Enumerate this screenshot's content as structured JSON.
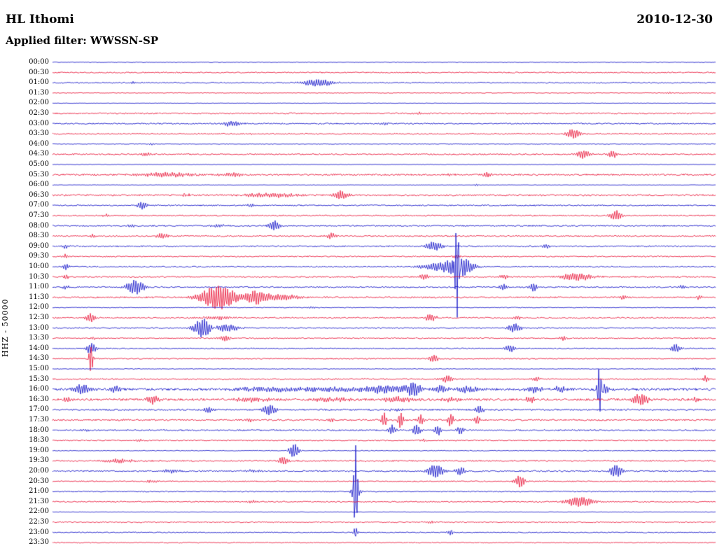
{
  "header": {
    "station": "HL Ithomi",
    "date": "2010-12-30",
    "filter_label": "Applied filter: WWSSN-SP"
  },
  "axis": {
    "y_label": "HHZ - 50000"
  },
  "colors": {
    "blue": "#1212c8",
    "red": "#e81438",
    "text": "#000000",
    "background": "#ffffff"
  },
  "chart_data": {
    "type": "line",
    "subtype": "helicorder-seismogram",
    "title": "HL Ithomi 2010-12-30 HHZ (WWSSN-SP filter)",
    "minutes_per_row": 30,
    "rows_count": 48,
    "event_encoding": "[position_fraction_of_30min_row, amplitude_px, half_width_px]",
    "rows": [
      {
        "time": "00:00",
        "color": "blue",
        "noise": 0.35,
        "events": []
      },
      {
        "time": "00:30",
        "color": "red",
        "noise": 0.8,
        "events": []
      },
      {
        "time": "01:00",
        "color": "blue",
        "noise": 0.8,
        "events": [
          [
            0.4,
            5,
            16
          ],
          [
            0.12,
            1.5,
            4
          ]
        ]
      },
      {
        "time": "01:30",
        "color": "red",
        "noise": 0.5,
        "events": [
          [
            0.93,
            1.5,
            3
          ]
        ]
      },
      {
        "time": "02:00",
        "color": "blue",
        "noise": 0.3,
        "events": []
      },
      {
        "time": "02:30",
        "color": "red",
        "noise": 0.95,
        "events": [
          [
            0.55,
            1.5,
            6
          ]
        ]
      },
      {
        "time": "03:00",
        "color": "blue",
        "noise": 0.85,
        "events": [
          [
            0.27,
            4,
            9
          ],
          [
            0.5,
            2,
            4
          ]
        ]
      },
      {
        "time": "03:30",
        "color": "red",
        "noise": 0.8,
        "events": [
          [
            0.785,
            7,
            7
          ],
          [
            0.3,
            1.5,
            4
          ]
        ]
      },
      {
        "time": "04:00",
        "color": "blue",
        "noise": 0.45,
        "events": [
          [
            0.15,
            1.5,
            3
          ]
        ]
      },
      {
        "time": "04:30",
        "color": "red",
        "noise": 0.9,
        "events": [
          [
            0.8,
            6,
            7
          ],
          [
            0.845,
            5,
            5
          ],
          [
            0.14,
            2.5,
            5
          ]
        ]
      },
      {
        "time": "05:00",
        "color": "blue",
        "noise": 0.4,
        "events": []
      },
      {
        "time": "05:30",
        "color": "red",
        "noise": 1.1,
        "events": [
          [
            0.17,
            3,
            28
          ],
          [
            0.27,
            3,
            12
          ],
          [
            0.655,
            4,
            4
          ],
          [
            0.6,
            2,
            4
          ]
        ]
      },
      {
        "time": "06:00",
        "color": "blue",
        "noise": 0.3,
        "events": [
          [
            0.64,
            1.5,
            3
          ]
        ]
      },
      {
        "time": "06:30",
        "color": "red",
        "noise": 1.1,
        "events": [
          [
            0.33,
            3,
            26
          ],
          [
            0.435,
            6,
            7
          ],
          [
            0.2,
            2,
            6
          ]
        ]
      },
      {
        "time": "07:00",
        "color": "blue",
        "noise": 0.85,
        "events": [
          [
            0.135,
            5,
            5
          ],
          [
            0.3,
            2,
            5
          ]
        ]
      },
      {
        "time": "07:30",
        "color": "red",
        "noise": 0.9,
        "events": [
          [
            0.85,
            7,
            6
          ],
          [
            0.08,
            2,
            4
          ]
        ]
      },
      {
        "time": "08:00",
        "color": "blue",
        "noise": 0.9,
        "events": [
          [
            0.335,
            7,
            6
          ],
          [
            0.12,
            2,
            5
          ],
          [
            0.25,
            2,
            10
          ]
        ]
      },
      {
        "time": "08:30",
        "color": "red",
        "noise": 0.95,
        "events": [
          [
            0.165,
            4,
            6
          ],
          [
            0.42,
            4,
            5
          ],
          [
            0.06,
            2,
            3
          ]
        ]
      },
      {
        "time": "09:00",
        "color": "blue",
        "noise": 0.9,
        "events": [
          [
            0.575,
            6,
            9
          ],
          [
            0.02,
            3,
            3
          ],
          [
            0.745,
            3,
            4
          ]
        ]
      },
      {
        "time": "09:30",
        "color": "red",
        "noise": 0.8,
        "events": [
          [
            0.02,
            3,
            3
          ],
          [
            0.61,
            3,
            4
          ]
        ]
      },
      {
        "time": "10:00",
        "color": "blue",
        "noise": 0.8,
        "events": [
          [
            0.61,
            85,
            2.5
          ],
          [
            0.615,
            13,
            12
          ],
          [
            0.59,
            6,
            22
          ],
          [
            0.02,
            4,
            3
          ]
        ]
      },
      {
        "time": "10:30",
        "color": "red",
        "noise": 0.95,
        "events": [
          [
            0.56,
            4,
            6
          ],
          [
            0.79,
            5,
            18
          ],
          [
            0.68,
            3,
            5
          ],
          [
            0.02,
            3,
            3
          ]
        ]
      },
      {
        "time": "11:00",
        "color": "blue",
        "noise": 0.95,
        "events": [
          [
            0.125,
            10,
            9
          ],
          [
            0.68,
            5,
            4
          ],
          [
            0.725,
            6,
            4
          ],
          [
            0.95,
            3,
            4
          ],
          [
            0.02,
            3,
            3
          ]
        ]
      },
      {
        "time": "11:30",
        "color": "red",
        "noise": 1.1,
        "events": [
          [
            0.25,
            17,
            18
          ],
          [
            0.305,
            8,
            10
          ],
          [
            0.34,
            4,
            25
          ],
          [
            0.86,
            3,
            4
          ],
          [
            0.975,
            3,
            3
          ]
        ]
      },
      {
        "time": "12:00",
        "color": "blue",
        "noise": 0.55,
        "events": [
          [
            0.39,
            1.5,
            4
          ]
        ]
      },
      {
        "time": "12:30",
        "color": "red",
        "noise": 0.95,
        "events": [
          [
            0.058,
            6,
            5
          ],
          [
            0.25,
            2.5,
            15
          ],
          [
            0.57,
            5,
            6
          ],
          [
            0.7,
            3,
            4
          ]
        ]
      },
      {
        "time": "13:00",
        "color": "blue",
        "noise": 0.8,
        "events": [
          [
            0.227,
            14,
            9
          ],
          [
            0.697,
            6,
            7
          ],
          [
            0.26,
            5,
            15
          ]
        ]
      },
      {
        "time": "13:30",
        "color": "red",
        "noise": 0.8,
        "events": [
          [
            0.26,
            4,
            6
          ],
          [
            0.77,
            3,
            4
          ],
          [
            0.06,
            2,
            3
          ]
        ]
      },
      {
        "time": "14:00",
        "color": "blue",
        "noise": 0.75,
        "events": [
          [
            0.058,
            8,
            5
          ],
          [
            0.69,
            5,
            5
          ],
          [
            0.94,
            6,
            5
          ]
        ]
      },
      {
        "time": "14:30",
        "color": "red",
        "noise": 0.8,
        "events": [
          [
            0.058,
            22,
            2
          ],
          [
            0.575,
            5,
            5
          ]
        ]
      },
      {
        "time": "15:00",
        "color": "blue",
        "noise": 0.45,
        "events": [
          [
            0.97,
            2,
            3
          ]
        ]
      },
      {
        "time": "15:30",
        "color": "red",
        "noise": 0.9,
        "events": [
          [
            0.595,
            5,
            6
          ],
          [
            0.73,
            3,
            4
          ],
          [
            0.985,
            5,
            3
          ]
        ]
      },
      {
        "time": "16:00",
        "color": "blue",
        "noise": 1.6,
        "events": [
          [
            0.045,
            7,
            8
          ],
          [
            0.095,
            5,
            5
          ],
          [
            0.33,
            3,
            35
          ],
          [
            0.42,
            3,
            28
          ],
          [
            0.5,
            5,
            25
          ],
          [
            0.545,
            9,
            8
          ],
          [
            0.585,
            5,
            10
          ],
          [
            0.625,
            4,
            14
          ],
          [
            0.725,
            4,
            10
          ],
          [
            0.765,
            4,
            7
          ],
          [
            0.825,
            40,
            2.5
          ],
          [
            0.83,
            9,
            6
          ]
        ]
      },
      {
        "time": "16:30",
        "color": "red",
        "noise": 1.5,
        "events": [
          [
            0.023,
            4,
            4
          ],
          [
            0.151,
            6,
            6
          ],
          [
            0.3,
            3,
            18
          ],
          [
            0.42,
            3,
            18
          ],
          [
            0.52,
            4,
            14
          ],
          [
            0.6,
            3,
            10
          ],
          [
            0.72,
            4,
            6
          ],
          [
            0.887,
            8,
            8
          ],
          [
            0.97,
            3,
            3
          ]
        ]
      },
      {
        "time": "17:00",
        "color": "blue",
        "noise": 1.1,
        "events": [
          [
            0.235,
            4,
            5
          ],
          [
            0.327,
            7,
            7
          ],
          [
            0.644,
            6,
            4
          ],
          [
            0.52,
            2,
            8
          ]
        ]
      },
      {
        "time": "17:30",
        "color": "red",
        "noise": 1.1,
        "events": [
          [
            0.5,
            10,
            3
          ],
          [
            0.525,
            12,
            3
          ],
          [
            0.555,
            8,
            3
          ],
          [
            0.6,
            10,
            3
          ],
          [
            0.64,
            6,
            3
          ],
          [
            0.42,
            3,
            4
          ],
          [
            0.3,
            2,
            5
          ]
        ]
      },
      {
        "time": "18:00",
        "color": "blue",
        "noise": 1.0,
        "events": [
          [
            0.512,
            7,
            4
          ],
          [
            0.549,
            8,
            4
          ],
          [
            0.581,
            7,
            4
          ],
          [
            0.615,
            5,
            4
          ],
          [
            0.05,
            2,
            4
          ]
        ]
      },
      {
        "time": "18:30",
        "color": "red",
        "noise": 0.8,
        "events": [
          [
            0.56,
            2,
            4
          ],
          [
            0.13,
            2,
            3
          ]
        ]
      },
      {
        "time": "19:00",
        "color": "blue",
        "noise": 0.55,
        "events": [
          [
            0.364,
            10,
            5
          ]
        ]
      },
      {
        "time": "19:30",
        "color": "red",
        "noise": 0.95,
        "events": [
          [
            0.348,
            6,
            5
          ],
          [
            0.1,
            2.5,
            15
          ]
        ]
      },
      {
        "time": "20:00",
        "color": "blue",
        "noise": 1.0,
        "events": [
          [
            0.578,
            10,
            8
          ],
          [
            0.615,
            6,
            5
          ],
          [
            0.85,
            9,
            6
          ],
          [
            0.18,
            2.5,
            10
          ],
          [
            0.3,
            2,
            8
          ]
        ]
      },
      {
        "time": "20:30",
        "color": "red",
        "noise": 0.8,
        "events": [
          [
            0.705,
            9,
            5
          ],
          [
            0.15,
            2,
            6
          ]
        ]
      },
      {
        "time": "21:00",
        "color": "blue",
        "noise": 0.7,
        "events": [
          [
            0.457,
            60,
            2
          ],
          [
            0.457,
            6,
            5
          ]
        ]
      },
      {
        "time": "21:30",
        "color": "red",
        "noise": 0.8,
        "events": [
          [
            0.795,
            7,
            14
          ],
          [
            0.3,
            2,
            5
          ]
        ]
      },
      {
        "time": "22:00",
        "color": "blue",
        "noise": 0.3,
        "events": []
      },
      {
        "time": "22:30",
        "color": "red",
        "noise": 0.75,
        "events": [
          [
            0.57,
            2,
            4
          ]
        ]
      },
      {
        "time": "23:00",
        "color": "blue",
        "noise": 0.7,
        "events": [
          [
            0.457,
            8,
            2
          ],
          [
            0.6,
            4,
            3
          ]
        ]
      },
      {
        "time": "23:30",
        "color": "red",
        "noise": 0.7,
        "events": []
      }
    ]
  }
}
